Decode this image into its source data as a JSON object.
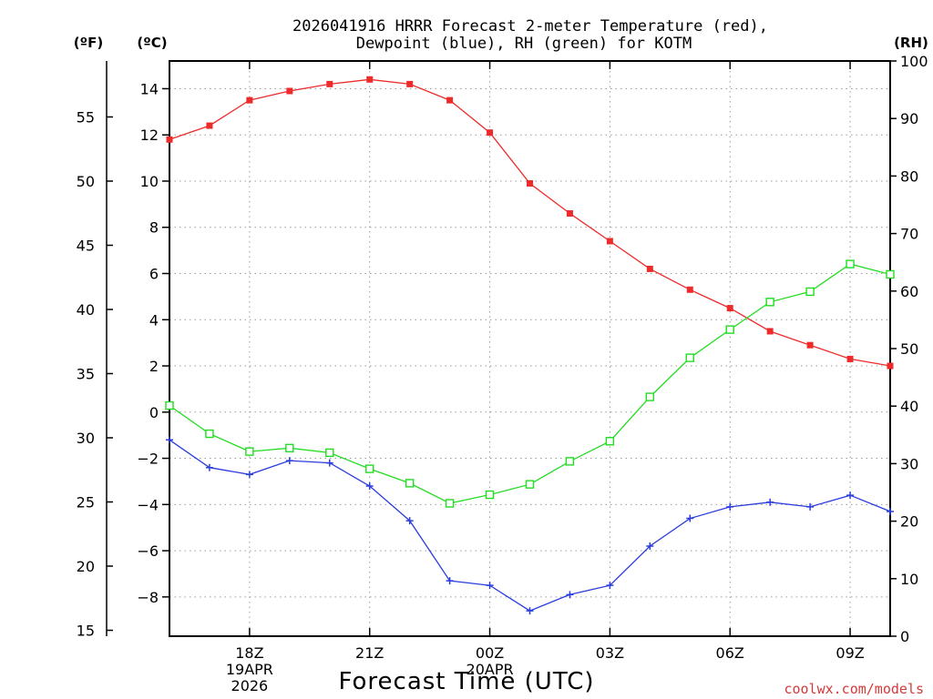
{
  "chart_data": {
    "type": "line",
    "title_line1": "2026041916 HRRR Forecast 2-meter Temperature (red),",
    "title_line2": "Dewpoint (blue), RH (green) for KOTM",
    "xlabel": "Forecast Time (UTC)",
    "credit": "coolwx.com/models",
    "units": {
      "fahrenheit": "(ºF)",
      "celsius": "(ºC)",
      "rh": "(RH)"
    },
    "x_hours": [
      16,
      17,
      18,
      19,
      20,
      21,
      22,
      23,
      24,
      25,
      26,
      27,
      28,
      29,
      30,
      31,
      32,
      33,
      34
    ],
    "xlim": [
      16,
      34
    ],
    "x_ticks": [
      {
        "hour": 18,
        "lines": [
          "18Z",
          "19APR",
          "2026"
        ]
      },
      {
        "hour": 21,
        "lines": [
          "21Z"
        ]
      },
      {
        "hour": 24,
        "lines": [
          "00Z",
          "20APR"
        ]
      },
      {
        "hour": 27,
        "lines": [
          "03Z"
        ]
      },
      {
        "hour": 30,
        "lines": [
          "06Z"
        ]
      },
      {
        "hour": 33,
        "lines": [
          "09Z"
        ]
      }
    ],
    "celsius_axis": {
      "ylim": [
        -9.7,
        15.2
      ],
      "ticks": [
        -8,
        -6,
        -4,
        -2,
        0,
        2,
        4,
        6,
        8,
        10,
        12,
        14
      ],
      "tick_labels": [
        "−8",
        "−6",
        "−4",
        "−2",
        "0",
        "2",
        "4",
        "6",
        "8",
        "10",
        "12",
        "14"
      ]
    },
    "fahrenheit_axis": {
      "ticks": [
        15,
        20,
        25,
        30,
        35,
        40,
        45,
        50,
        55
      ],
      "tick_labels": [
        "15",
        "20",
        "25",
        "30",
        "35",
        "40",
        "45",
        "50",
        "55"
      ]
    },
    "rh_axis": {
      "ylim": [
        0,
        100
      ],
      "ticks": [
        0,
        10,
        20,
        30,
        40,
        50,
        60,
        70,
        80,
        90,
        100
      ],
      "tick_labels": [
        "0",
        "10",
        "20",
        "30",
        "40",
        "50",
        "60",
        "70",
        "80",
        "90",
        "100"
      ]
    },
    "series": [
      {
        "name": "2-meter Temperature",
        "axis": "celsius",
        "color": "#ee2b2b",
        "marker": "filled-square",
        "values": [
          11.8,
          12.4,
          13.5,
          13.9,
          14.2,
          14.4,
          14.2,
          13.5,
          12.1,
          9.9,
          8.6,
          7.4,
          6.2,
          5.3,
          4.5,
          3.5,
          2.9,
          2.3,
          2.0
        ]
      },
      {
        "name": "Dewpoint",
        "axis": "celsius",
        "color": "#2b3ddd",
        "marker": "plus",
        "values": [
          -1.2,
          -2.4,
          -2.7,
          -2.1,
          -2.2,
          -3.2,
          -4.7,
          -7.3,
          -7.5,
          -8.6,
          -7.9,
          -7.5,
          -5.8,
          -4.6,
          -4.1,
          -3.9,
          -4.1,
          -3.6,
          -4.3
        ]
      },
      {
        "name": "RH",
        "axis": "rh",
        "color": "#22dd22",
        "marker": "open-square",
        "values": [
          40.1,
          35.2,
          32.1,
          32.7,
          31.9,
          29.1,
          26.6,
          23.1,
          24.6,
          26.4,
          30.4,
          33.9,
          41.6,
          48.4,
          53.3,
          58.1,
          59.9,
          64.7,
          62.9
        ]
      }
    ],
    "grid": true
  }
}
